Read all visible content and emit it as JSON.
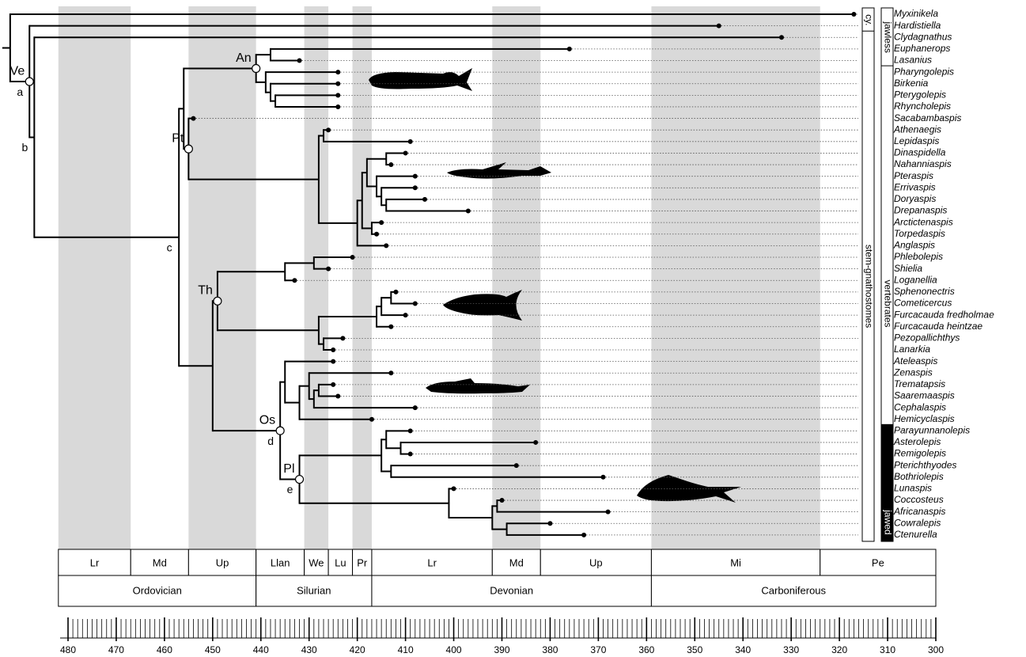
{
  "taxa": [
    {
      "name": "Myxinikela",
      "age": 317
    },
    {
      "name": "Hardistiella",
      "age": 345
    },
    {
      "name": "Clydagnathus",
      "age": 332
    },
    {
      "name": "Euphanerops",
      "age": 376
    },
    {
      "name": "Lasanius",
      "age": 432
    },
    {
      "name": "Pharyngolepis",
      "age": 424
    },
    {
      "name": "Birkenia",
      "age": 424
    },
    {
      "name": "Pterygolepis",
      "age": 424
    },
    {
      "name": "Rhyncholepis",
      "age": 424
    },
    {
      "name": "Sacabambaspis",
      "age": 454
    },
    {
      "name": "Athenaegis",
      "age": 426
    },
    {
      "name": "Lepidaspis",
      "age": 409
    },
    {
      "name": "Dinaspidella",
      "age": 410
    },
    {
      "name": "Nahanniaspis",
      "age": 413
    },
    {
      "name": "Pteraspis",
      "age": 408
    },
    {
      "name": "Errivaspis",
      "age": 408
    },
    {
      "name": "Doryaspis",
      "age": 406
    },
    {
      "name": "Drepanaspis",
      "age": 397
    },
    {
      "name": "Arctictenaspis",
      "age": 415
    },
    {
      "name": "Torpedaspis",
      "age": 416
    },
    {
      "name": "Anglaspis",
      "age": 414
    },
    {
      "name": "Phlebolepis",
      "age": 421
    },
    {
      "name": "Shielia",
      "age": 426
    },
    {
      "name": "Loganellia",
      "age": 433
    },
    {
      "name": "Sphenonectris",
      "age": 412
    },
    {
      "name": "Cometicercus",
      "age": 408
    },
    {
      "name": "Furcacauda  fredholmae",
      "age": 410
    },
    {
      "name": "Furcacauda  heintzae",
      "age": 413
    },
    {
      "name": "Pezopallichthys",
      "age": 423
    },
    {
      "name": "Lanarkia",
      "age": 425
    },
    {
      "name": "Ateleaspis",
      "age": 425
    },
    {
      "name": "Zenaspis",
      "age": 413
    },
    {
      "name": "Trematapsis",
      "age": 425
    },
    {
      "name": "Saaremaaspis",
      "age": 424
    },
    {
      "name": "Cephalaspis",
      "age": 408
    },
    {
      "name": "Hemicyclaspis",
      "age": 417
    },
    {
      "name": "Parayunnanolepis",
      "age": 409
    },
    {
      "name": "Asterolepis",
      "age": 383
    },
    {
      "name": "Remigolepis",
      "age": 409
    },
    {
      "name": "Pterichthyodes",
      "age": 387
    },
    {
      "name": "Bothriolepis",
      "age": 369
    },
    {
      "name": "Lunaspis",
      "age": 400
    },
    {
      "name": "Coccosteus",
      "age": 390
    },
    {
      "name": "Africanaspis",
      "age": 368
    },
    {
      "name": "Cowralepis",
      "age": 380
    },
    {
      "name": "Ctenurella",
      "age": 373
    }
  ],
  "tree": {
    "age": 492,
    "children": [
      0,
      {
        "age": 488,
        "label": "Ve",
        "branch": "a",
        "children": [
          1,
          {
            "age": 487,
            "branch": "b",
            "children": [
              2,
              {
                "age": 457,
                "branch": "c",
                "children": [
                  {
                    "age": 456,
                    "children": [
                      {
                        "age": 441,
                        "label": "An",
                        "children": [
                          {
                            "age": 438,
                            "children": [
                              3,
                              4
                            ]
                          },
                          {
                            "age": 439,
                            "children": [
                              5,
                              {
                                "age": 438,
                                "children": [
                                  6,
                                  {
                                    "age": 437,
                                    "children": [
                                      7,
                                      8
                                    ]
                                  }
                                ]
                              }
                            ]
                          }
                        ]
                      },
                      {
                        "age": 455,
                        "label": "Pt",
                        "children": [
                          9,
                          {
                            "age": 428,
                            "children": [
                              {
                                "age": 427,
                                "children": [
                                  10,
                                  11
                                ]
                              },
                              {
                                "age": 420,
                                "children": [
                                  {
                                    "age": 419,
                                    "children": [
                                      {
                                        "age": 418,
                                        "children": [
                                          {
                                            "age": 414,
                                            "children": [
                                              12,
                                              13
                                            ]
                                          },
                                          {
                                            "age": 416,
                                            "children": [
                                              14,
                                              {
                                                "age": 415,
                                                "children": [
                                                  15,
                                                  {
                                                    "age": 414,
                                                    "children": [
                                                      16,
                                                      17
                                                    ]
                                                  }
                                                ]
                                              }
                                            ]
                                          }
                                        ]
                                      },
                                      {
                                        "age": 417,
                                        "children": [
                                          18,
                                          19
                                        ]
                                      }
                                    ]
                                  },
                                  20
                                ]
                              }
                            ]
                          }
                        ]
                      }
                    ]
                  },
                  {
                    "age": 450,
                    "children": [
                      {
                        "age": 449,
                        "label": "Th",
                        "children": [
                          {
                            "age": 435,
                            "children": [
                              {
                                "age": 429,
                                "children": [
                                  21,
                                  22
                                ]
                              },
                              23
                            ]
                          },
                          {
                            "age": 428,
                            "children": [
                              {
                                "age": 416,
                                "children": [
                                  {
                                    "age": 415,
                                    "children": [
                                      {
                                        "age": 413,
                                        "children": [
                                          24,
                                          25
                                        ]
                                      },
                                      26
                                    ]
                                  },
                                  27
                                ]
                              },
                              {
                                "age": 427,
                                "children": [
                                  28,
                                  29
                                ]
                              }
                            ]
                          }
                        ]
                      },
                      {
                        "age": 436,
                        "label": "Os",
                        "branch": "d",
                        "children": [
                          {
                            "age": 435,
                            "children": [
                              30,
                              {
                                "age": 432,
                                "children": [
                                  {
                                    "age": 430,
                                    "children": [
                                      31,
                                      {
                                        "age": 429,
                                        "children": [
                                          {
                                            "age": 428,
                                            "children": [
                                              32,
                                              33
                                            ]
                                          },
                                          34
                                        ]
                                      }
                                    ]
                                  },
                                  35
                                ]
                              }
                            ]
                          },
                          {
                            "age": 432,
                            "label": "Pl",
                            "branch": "e",
                            "children": [
                              {
                                "age": 415,
                                "children": [
                                  {
                                    "age": 414,
                                    "children": [
                                      36,
                                      {
                                        "age": 411,
                                        "children": [
                                          37,
                                          38
                                        ]
                                      }
                                    ]
                                  },
                                  {
                                    "age": 413,
                                    "children": [
                                      39,
                                      40
                                    ]
                                  }
                                ]
                              },
                              {
                                "age": 401,
                                "children": [
                                  41,
                                  {
                                    "age": 392,
                                    "children": [
                                      {
                                        "age": 391,
                                        "children": [
                                          42,
                                          43
                                        ]
                                      },
                                      {
                                        "age": 389,
                                        "children": [
                                          44,
                                          45
                                        ]
                                      }
                                    ]
                                  }
                                ]
                              }
                            ]
                          }
                        ]
                      }
                    ]
                  }
                ]
              }
            ]
          }
        ]
      }
    ]
  },
  "bars": [
    [
      {
        "label": "cy.",
        "first": 0,
        "last": 1
      },
      {
        "label": "stem-gnathostomes",
        "first": 2,
        "last": 45
      }
    ],
    [
      {
        "label": "jawless",
        "first": 0,
        "last": 4
      },
      {
        "label": "vertebrates",
        "first": 5,
        "last": 45
      },
      {
        "label": "jawed",
        "first": 36,
        "last": 45,
        "filled": true
      }
    ]
  ],
  "epochs": [
    {
      "label": "Lr",
      "start": 482,
      "end": 467,
      "shaded": true
    },
    {
      "label": "Md",
      "start": 467,
      "end": 455,
      "shaded": false
    },
    {
      "label": "Up",
      "start": 455,
      "end": 441,
      "shaded": true
    },
    {
      "label": "Llan",
      "start": 441,
      "end": 431,
      "shaded": false
    },
    {
      "label": "We",
      "start": 431,
      "end": 426,
      "shaded": true
    },
    {
      "label": "Lu",
      "start": 426,
      "end": 421,
      "shaded": false
    },
    {
      "label": "Pr",
      "start": 421,
      "end": 417,
      "shaded": true
    },
    {
      "label": "Lr",
      "start": 417,
      "end": 392,
      "shaded": false
    },
    {
      "label": "Md",
      "start": 392,
      "end": 382,
      "shaded": true
    },
    {
      "label": "Up",
      "start": 382,
      "end": 359,
      "shaded": false
    },
    {
      "label": "Mi",
      "start": 359,
      "end": 324,
      "shaded": true
    },
    {
      "label": "Pe",
      "start": 324,
      "end": 300,
      "shaded": false
    }
  ],
  "periods": [
    {
      "label": "Ordovician",
      "start": 482,
      "end": 441
    },
    {
      "label": "Silurian",
      "start": 441,
      "end": 417
    },
    {
      "label": "Devonian",
      "start": 417,
      "end": 359
    },
    {
      "label": "Carboniferous",
      "start": 359,
      "end": 300
    }
  ],
  "time_axis": {
    "xlim": [
      480,
      300
    ],
    "xticks": [
      480,
      470,
      460,
      450,
      440,
      430,
      420,
      410,
      400,
      390,
      380,
      370,
      360,
      350,
      340,
      330,
      320,
      310,
      300
    ],
    "minor_step": 1
  }
}
